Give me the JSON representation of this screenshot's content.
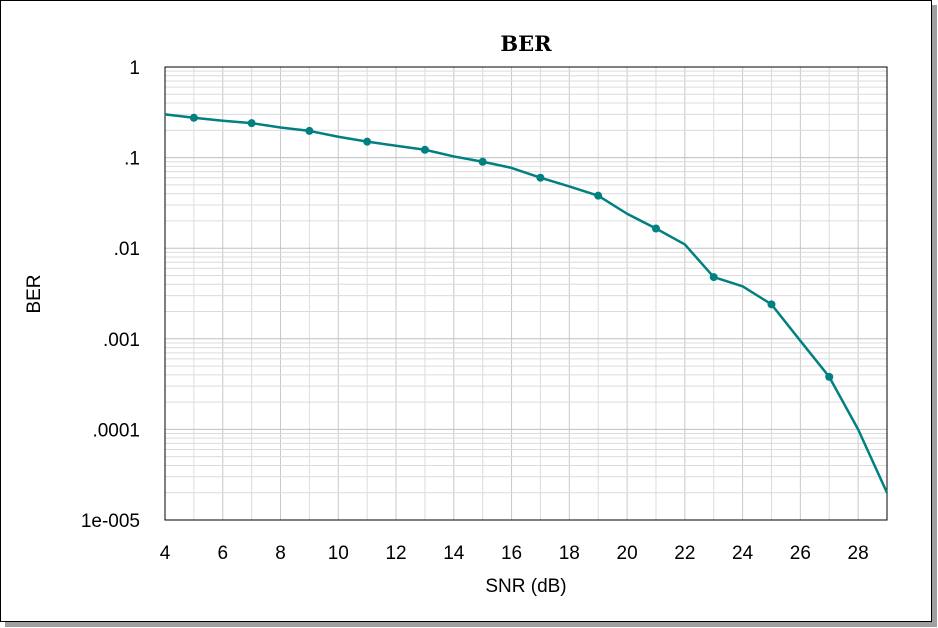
{
  "chart_data": {
    "type": "line",
    "title": "BER",
    "xlabel": "SNR (dB)",
    "ylabel": "BER",
    "xlim": [
      4,
      29
    ],
    "ylim": [
      1e-05,
      1
    ],
    "y_scale": "log",
    "grid": true,
    "x_ticks": [
      4,
      6,
      8,
      10,
      12,
      14,
      16,
      18,
      20,
      22,
      24,
      26,
      28
    ],
    "x_tick_labels": [
      "4",
      "6",
      "8",
      "10",
      "12",
      "14",
      "16",
      "18",
      "20",
      "22",
      "24",
      "26",
      "28"
    ],
    "y_ticks": [
      1,
      0.1,
      0.01,
      0.001,
      0.0001,
      1e-05
    ],
    "y_tick_labels": [
      "1",
      ".1",
      ".01",
      ".001",
      ".0001",
      "1e-005"
    ],
    "line_color": "#008080",
    "series": [
      {
        "x": [
          4,
          5,
          6,
          7,
          8,
          9,
          10,
          11,
          12,
          13,
          14,
          15,
          16,
          17,
          18,
          19,
          20,
          21,
          22,
          23,
          24,
          25,
          26,
          27,
          28,
          29
        ],
        "y": [
          0.3,
          0.275,
          0.255,
          0.24,
          0.215,
          0.197,
          0.17,
          0.15,
          0.135,
          0.122,
          0.103,
          0.09,
          0.077,
          0.06,
          0.048,
          0.038,
          0.024,
          0.0165,
          0.011,
          0.0048,
          0.0038,
          0.0024,
          0.00095,
          0.00038,
          0.0001,
          2e-05
        ],
        "marker_x": [
          5,
          7,
          9,
          11,
          13,
          15,
          17,
          19,
          21,
          23,
          25,
          27
        ]
      }
    ]
  }
}
